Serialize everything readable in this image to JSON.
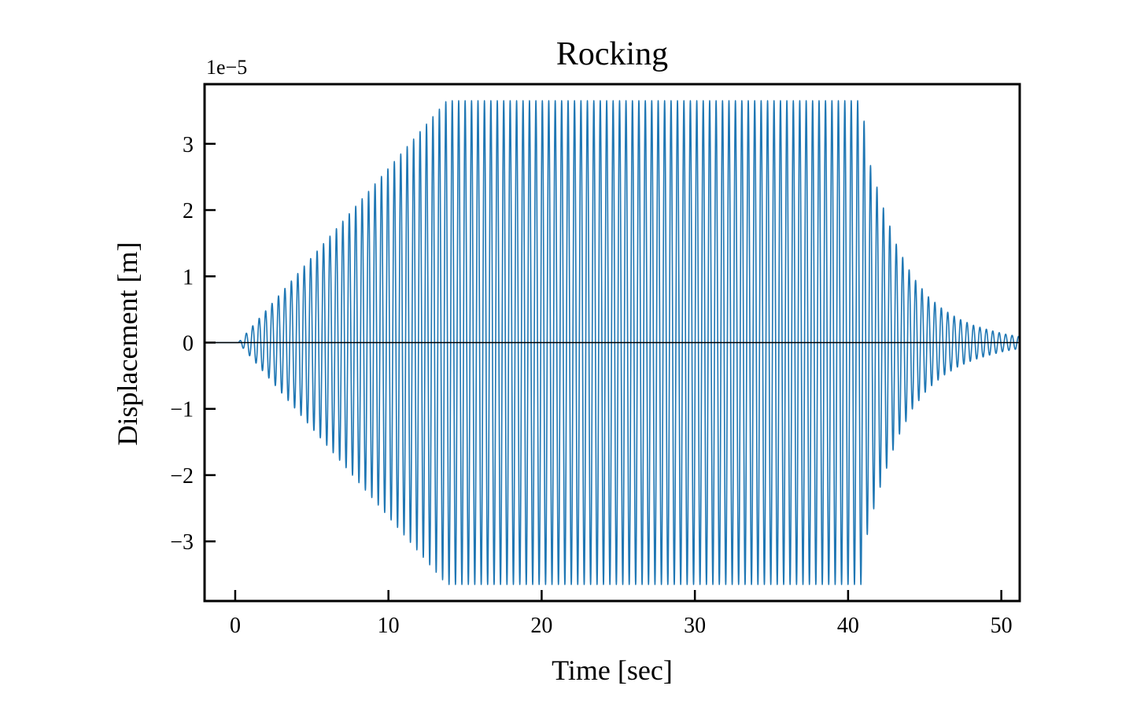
{
  "chart_data": {
    "type": "line",
    "title": "Rocking",
    "xlabel": "Time [sec]",
    "ylabel": "Displacement [m]",
    "y_offset_label": "1e−5",
    "y_scale": 1e-05,
    "xlim": [
      -2.0,
      51.2
    ],
    "ylim": [
      -3.9e-05,
      3.9e-05
    ],
    "xticks": [
      0,
      10,
      20,
      30,
      40,
      50
    ],
    "xtick_labels": [
      "0",
      "10",
      "20",
      "30",
      "40",
      "50"
    ],
    "yticks": [
      -3e-05,
      -2e-05,
      -1e-05,
      0,
      1e-05,
      2e-05,
      3e-05
    ],
    "ytick_labels": [
      "−3",
      "−2",
      "−1",
      "0",
      "1",
      "2",
      "3"
    ],
    "grid": false,
    "series": [
      {
        "color": "#1f77b4",
        "signal": "sinusoid",
        "period_sec": 0.42,
        "start_time": 0.2,
        "end_time": 51.2,
        "envelope_time": [
          0.2,
          13.8,
          40.9,
          41.3,
          42.2,
          43.2,
          44.2,
          45.2,
          46.2,
          47.2,
          48.2,
          49.2,
          50.2,
          51.2
        ],
        "envelope_amplitude": [
          0,
          3.65e-05,
          3.65e-05,
          2.8e-05,
          2.1e-05,
          1.45e-05,
          1e-05,
          7e-06,
          5e-06,
          3.6e-06,
          2.6e-06,
          1.9e-06,
          1.3e-06,
          9e-07
        ]
      }
    ],
    "reference_lines": [
      {
        "y": 0,
        "color": "#000000"
      }
    ]
  }
}
